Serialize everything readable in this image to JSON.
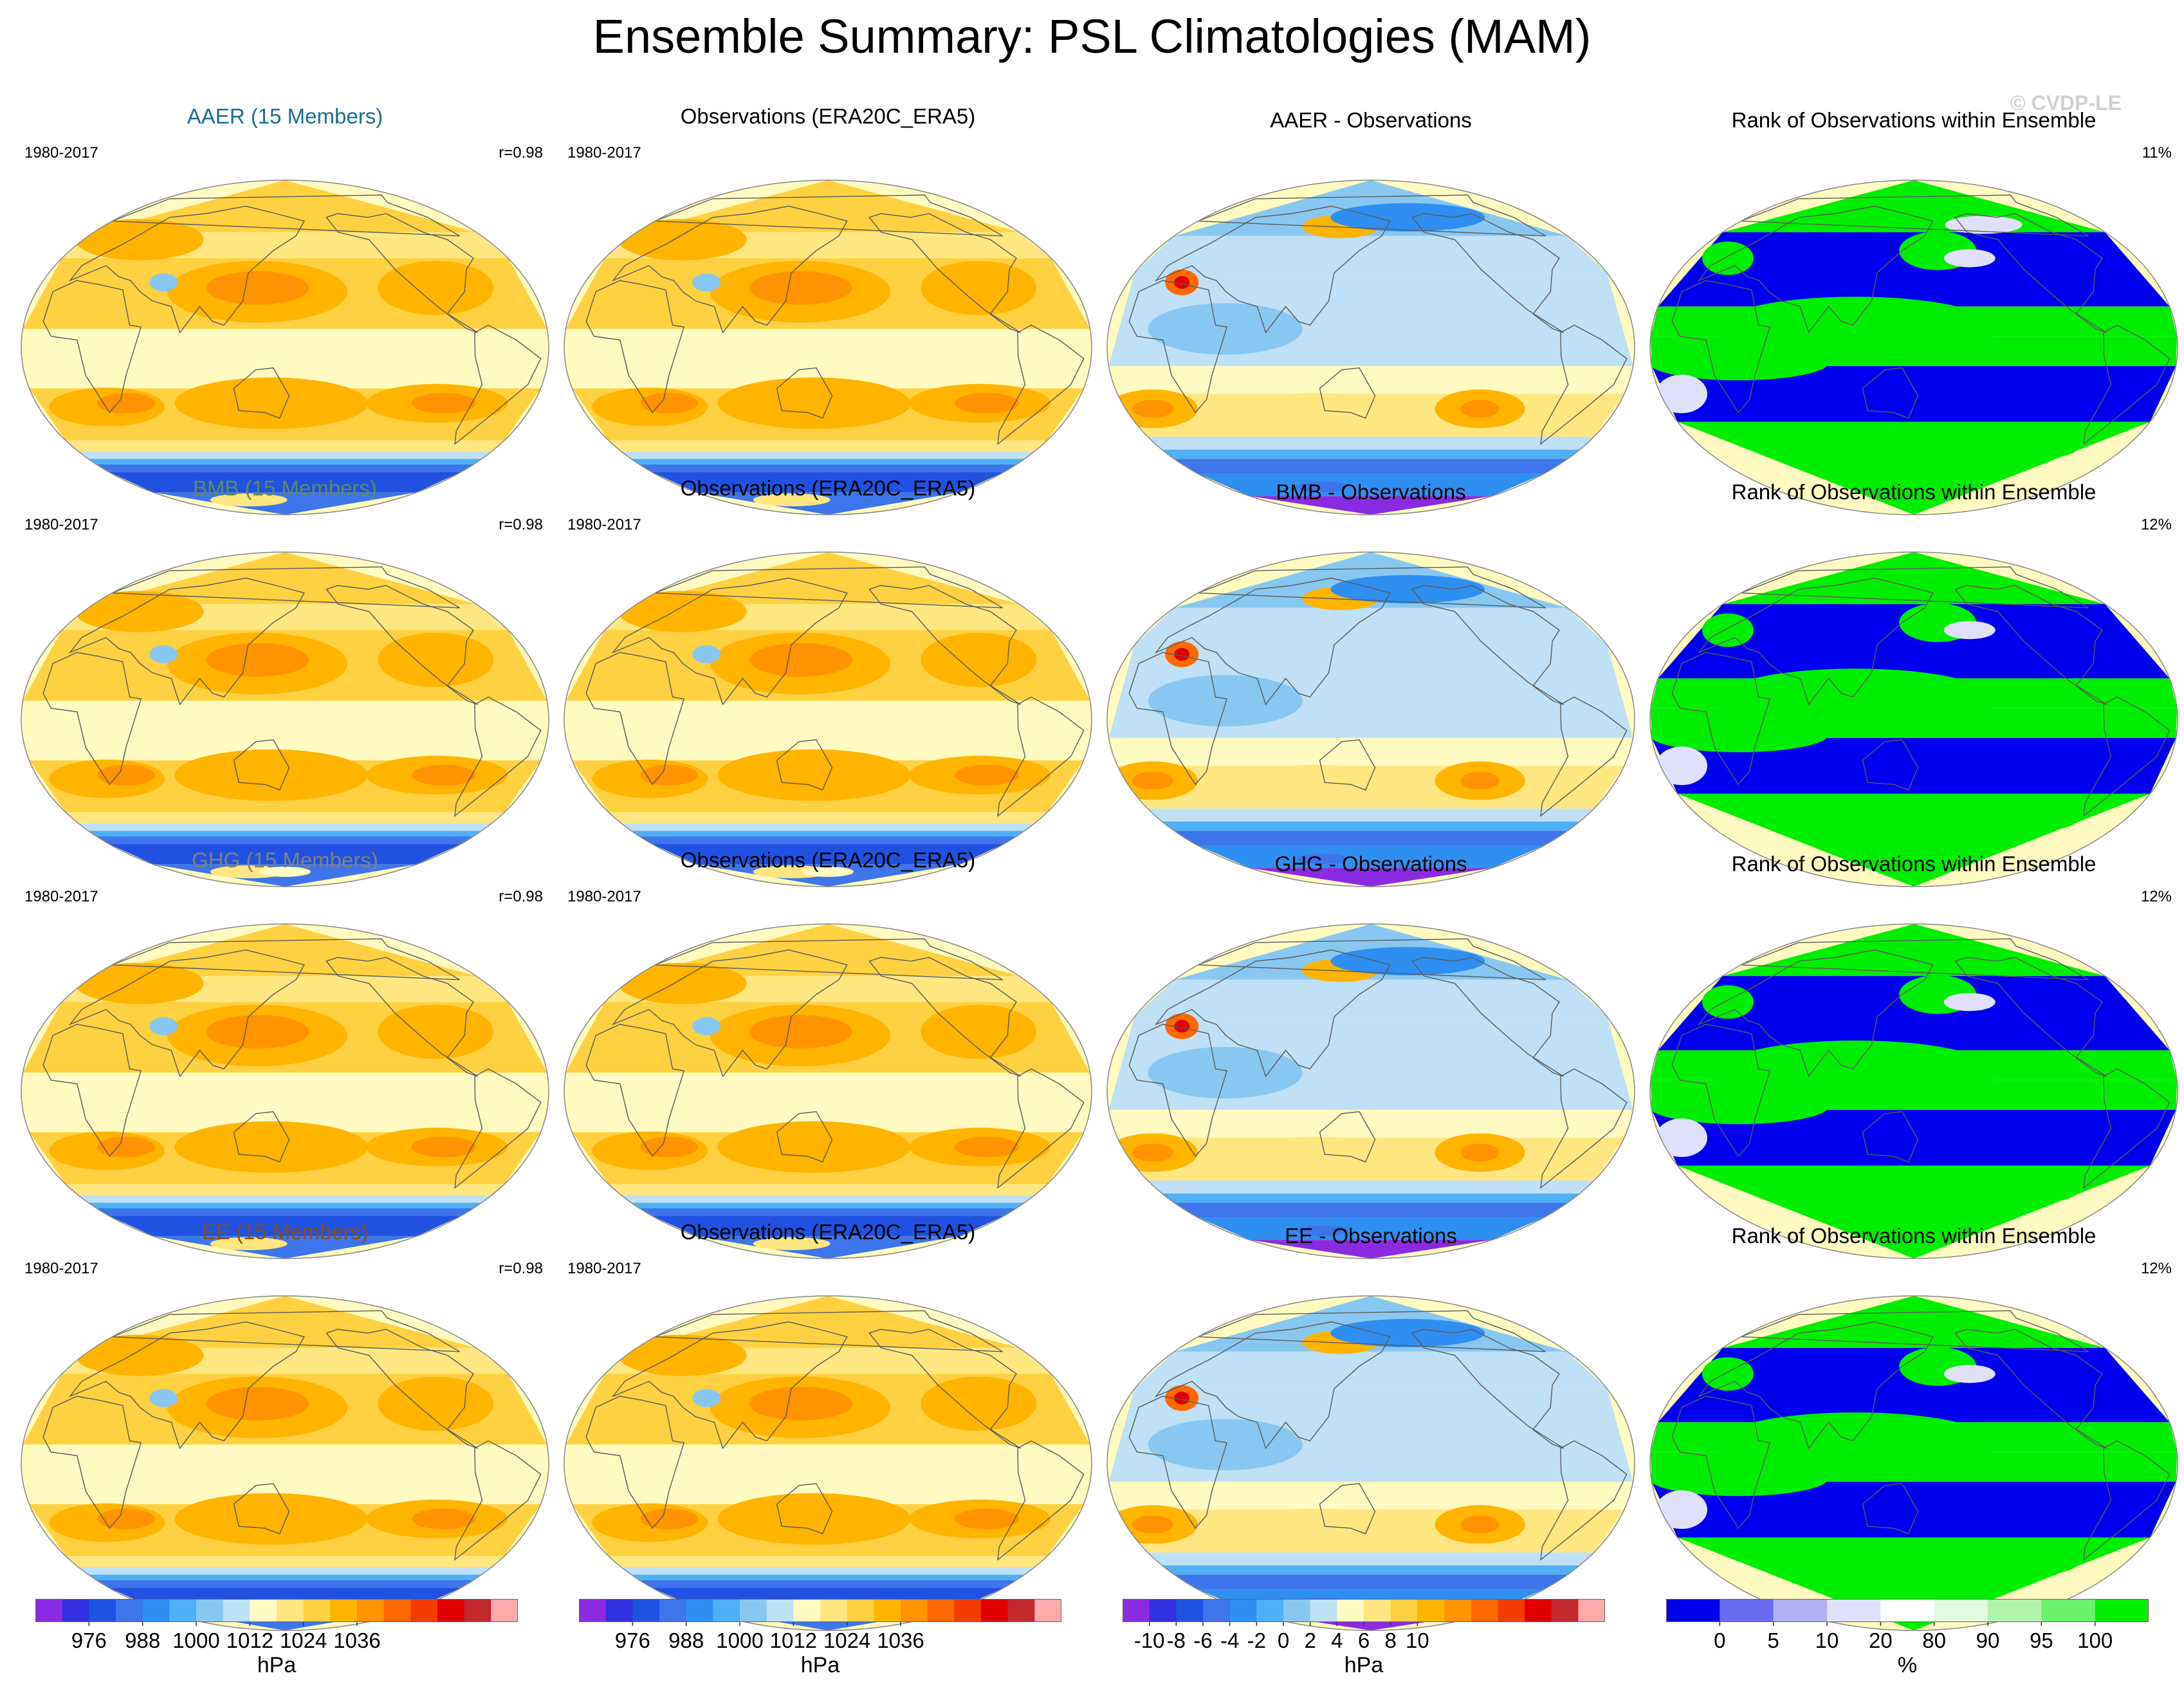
{
  "title": "Ensemble Summary: PSL Climatologies (MAM)",
  "watermark": "© CVDP-LE",
  "period": "1980-2017",
  "rows": [
    {
      "ens": {
        "title": "AAER (15 Members)",
        "color": "#1a6e96",
        "corr": "r=0.98"
      },
      "obs": {
        "title": "Observations (ERA20C_ERA5)"
      },
      "diff": {
        "title": "AAER - Observations"
      },
      "rank": {
        "title": "Rank of Observations within Ensemble",
        "pct": "11%"
      }
    },
    {
      "ens": {
        "title": "BMB (15 Members)",
        "color": "#5e8a5e",
        "corr": "r=0.98"
      },
      "obs": {
        "title": "Observations (ERA20C_ERA5)"
      },
      "diff": {
        "title": "BMB - Observations"
      },
      "rank": {
        "title": "Rank of Observations within Ensemble",
        "pct": "12%"
      }
    },
    {
      "ens": {
        "title": "GHG (15 Members)",
        "color": "#808080",
        "corr": "r=0.98"
      },
      "obs": {
        "title": "Observations (ERA20C_ERA5)"
      },
      "diff": {
        "title": "GHG - Observations"
      },
      "rank": {
        "title": "Rank of Observations within Ensemble",
        "pct": "12%"
      }
    },
    {
      "ens": {
        "title": "EE (15 Members)",
        "color": "#8b4a1a",
        "corr": "r=0.98"
      },
      "obs": {
        "title": "Observations (ERA20C_ERA5)"
      },
      "diff": {
        "title": "EE - Observations"
      },
      "rank": {
        "title": "Rank of Observations within Ensemble",
        "pct": "12%"
      }
    }
  ],
  "colorbars": [
    {
      "unit": "hPa",
      "ticks": [
        "976",
        "988",
        "1000",
        "1012",
        "1024",
        "1036"
      ],
      "tick_after_box": [
        1,
        3,
        5,
        7,
        9,
        11
      ],
      "type": "psl"
    },
    {
      "unit": "hPa",
      "ticks": [
        "976",
        "988",
        "1000",
        "1012",
        "1024",
        "1036"
      ],
      "tick_after_box": [
        1,
        3,
        5,
        7,
        9,
        11
      ],
      "type": "psl"
    },
    {
      "unit": "hPa",
      "ticks": [
        "-10",
        "-8",
        "-6",
        "-4",
        "-2",
        "0",
        "2",
        "4",
        "6",
        "8",
        "10"
      ],
      "tick_after_box": [
        0,
        1,
        2,
        3,
        4,
        5,
        6,
        7,
        8,
        9,
        10
      ],
      "type": "diff"
    },
    {
      "unit": "%",
      "ticks": [
        "0",
        "5",
        "10",
        "20",
        "80",
        "90",
        "95",
        "100"
      ],
      "tick_after_box": [
        0,
        1,
        2,
        3,
        4,
        5,
        6,
        7
      ],
      "type": "rank"
    }
  ],
  "colors": {
    "psl": [
      "#8a2be2",
      "#3030e0",
      "#1f52e0",
      "#3d75ea",
      "#2f8ff0",
      "#4fb0f5",
      "#87c8f2",
      "#bfe0f5",
      "#fffac0",
      "#ffe680",
      "#ffd040",
      "#ffb400",
      "#ff9300",
      "#ff6a00",
      "#f53c00",
      "#e00000",
      "#c0282c",
      "#ffaaaa"
    ],
    "diff": [
      "#8a2be2",
      "#3030e0",
      "#1f52e0",
      "#3d75ea",
      "#2f8ff0",
      "#4fb0f5",
      "#87c8f2",
      "#bfe0f5",
      "#fffac0",
      "#ffe680",
      "#ffd040",
      "#ffb400",
      "#ff9300",
      "#ff6a00",
      "#f53c00",
      "#e00000",
      "#c0282c",
      "#ffaaaa"
    ],
    "rank": [
      "#0000ee",
      "#6b6bf0",
      "#b0b0f3",
      "#e0e0fa",
      "#ffffff",
      "#e0fbe0",
      "#b0f4b0",
      "#6cf26c",
      "#00ef00"
    ]
  }
}
